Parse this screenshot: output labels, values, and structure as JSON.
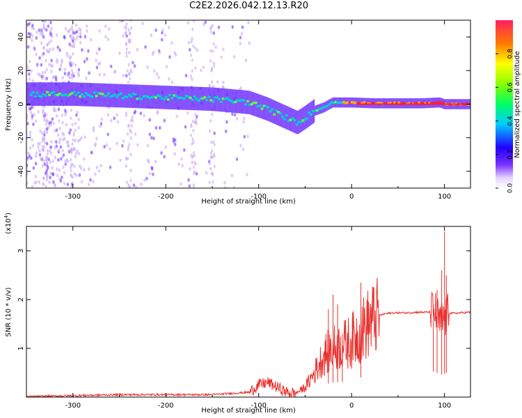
{
  "figure_title": "C2E2.2026.042.12.13.R20",
  "colors": {
    "snr_line": "#e8322e",
    "spec_dim": "#c7a6f2",
    "spec_mid": "#6a2bff",
    "spec_core": "#00d0d0"
  },
  "chart_data": [
    {
      "type": "heatmap",
      "title": "",
      "xlabel": "Height of straight line (km)",
      "ylabel": "Frequency (Hz)",
      "xlim": [
        -350,
        128
      ],
      "ylim": [
        -50,
        50
      ],
      "xticks": [
        -300,
        -200,
        -100,
        0,
        100
      ],
      "xtick_labels": [
        "-300",
        "-200",
        "-100",
        "0",
        "100"
      ],
      "yticks": [
        -40,
        -20,
        0,
        20,
        40
      ],
      "ytick_labels": [
        "-40",
        "-20",
        "0",
        "20",
        "40"
      ],
      "ridge": {
        "description": "Frequency of peak spectral amplitude vs height",
        "x": [
          -345,
          -300,
          -250,
          -200,
          -150,
          -110,
          -90,
          -70,
          -58,
          -50,
          -45,
          -40,
          -30,
          -20,
          -10,
          0,
          25,
          50,
          75,
          95,
          100,
          110,
          128
        ],
        "y": [
          6,
          6,
          5,
          4,
          3,
          1,
          -3,
          -8,
          -11,
          -8,
          -6,
          -4,
          -2,
          1,
          1,
          1,
          0.5,
          0.5,
          0.5,
          1,
          0,
          0,
          0
        ]
      },
      "colorbar": {
        "label": "Normalized spectral amplitude",
        "range": [
          0,
          1
        ],
        "ticks": [
          0.0,
          0.2,
          0.4,
          0.6,
          0.8
        ],
        "tick_labels": [
          "0.0",
          "0.2",
          "0.4",
          "0.6",
          "0.8"
        ]
      }
    },
    {
      "type": "line",
      "title": "",
      "xlabel": "Height of straight line (km)",
      "ylabel": "SNR (10 * v/v)",
      "y_multiplier": "(x10",
      "y_multiplier_exp": "4",
      "y_multiplier_close": ")",
      "xlim": [
        -350,
        128
      ],
      "ylim": [
        0,
        3.5
      ],
      "xticks": [
        -300,
        -200,
        -100,
        0,
        100
      ],
      "xtick_labels": [
        "-300",
        "-200",
        "-100",
        "0",
        "100"
      ],
      "yticks": [
        1,
        2,
        3
      ],
      "ytick_labels": [
        "1",
        "2",
        "3"
      ],
      "series": [
        {
          "name": "SNR",
          "x": [
            -350,
            -300,
            -250,
            -200,
            -150,
            -110,
            -100,
            -90,
            -80,
            -70,
            -60,
            -50,
            -40,
            -30,
            -20,
            -10,
            0,
            10,
            20,
            30,
            40,
            50,
            60,
            70,
            80,
            90,
            95,
            100,
            105,
            110,
            128
          ],
          "y": [
            0.01,
            0.03,
            0.05,
            0.05,
            0.05,
            0.1,
            0.25,
            0.3,
            0.2,
            0.1,
            0.08,
            0.2,
            0.5,
            0.85,
            1.0,
            1.05,
            1.15,
            1.35,
            1.55,
            1.68,
            1.72,
            1.73,
            1.73,
            1.74,
            1.74,
            1.75,
            1.5,
            1.6,
            1.72,
            1.72,
            1.74
          ]
        }
      ],
      "spikes": {
        "x": [
          -25,
          -20,
          -15,
          -10,
          10,
          88,
          92,
          97,
          100,
          102
        ],
        "y": [
          1.8,
          2.1,
          1.9,
          1.3,
          2.35,
          1.9,
          2.2,
          2.6,
          3.4,
          2.5
        ]
      }
    }
  ]
}
